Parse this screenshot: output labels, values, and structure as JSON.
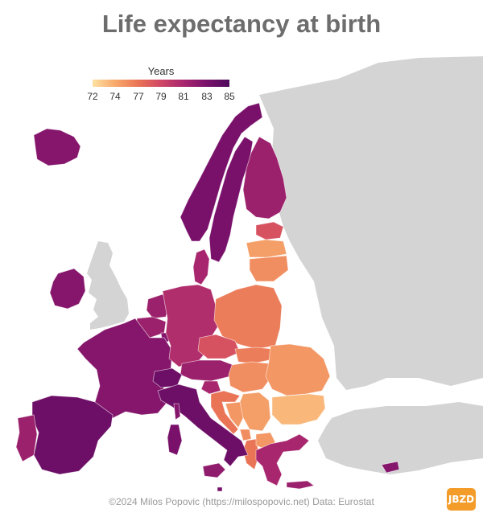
{
  "title": "Life expectancy at birth",
  "legend": {
    "title": "Years",
    "ticks": [
      "72",
      "74",
      "77",
      "79",
      "81",
      "83",
      "85"
    ],
    "colors": [
      "#fde2a2",
      "#f7a86b",
      "#ea7456",
      "#cf4665",
      "#a7266e",
      "#79116b",
      "#4e0a5c"
    ]
  },
  "credit": "©2024 Milos Popovic (https://milospopovic.net) Data: Eurostat",
  "watermark": "JBZD",
  "no_data_color": "#d4d4d4",
  "regions": [
    {
      "name": "Iceland",
      "years": 82.5
    },
    {
      "name": "Norway",
      "years": 83.0
    },
    {
      "name": "Sweden",
      "years": 83.0
    },
    {
      "name": "Finland",
      "years": 81.5
    },
    {
      "name": "Estonia",
      "years": 78.5
    },
    {
      "name": "Latvia",
      "years": 74.5
    },
    {
      "name": "Lithuania",
      "years": 75.5
    },
    {
      "name": "Ireland",
      "years": 82.5
    },
    {
      "name": "Denmark",
      "years": 81.0
    },
    {
      "name": "Netherlands",
      "years": 81.5
    },
    {
      "name": "Belgium",
      "years": 81.5
    },
    {
      "name": "Luxembourg",
      "years": 82.5
    },
    {
      "name": "France",
      "years": 82.5
    },
    {
      "name": "Germany",
      "years": 80.5
    },
    {
      "name": "Poland",
      "years": 76.5
    },
    {
      "name": "Czechia",
      "years": 78.5
    },
    {
      "name": "Slovakia",
      "years": 76.5
    },
    {
      "name": "Austria",
      "years": 81.5
    },
    {
      "name": "Switzerland",
      "years": 83.5
    },
    {
      "name": "Hungary",
      "years": 75.5
    },
    {
      "name": "Slovenia",
      "years": 81.0
    },
    {
      "name": "Croatia",
      "years": 77.0
    },
    {
      "name": "Serbia",
      "years": 74.5
    },
    {
      "name": "Bosnia",
      "years": 75.0
    },
    {
      "name": "Montenegro",
      "years": 75.5
    },
    {
      "name": "Albania",
      "years": 77.0
    },
    {
      "name": "North Macedonia",
      "years": 75.0
    },
    {
      "name": "Romania",
      "years": 75.0
    },
    {
      "name": "Bulgaria",
      "years": 73.5
    },
    {
      "name": "Greece",
      "years": 81.0
    },
    {
      "name": "Italy",
      "years": 83.5
    },
    {
      "name": "Sardinia",
      "years": 83.0
    },
    {
      "name": "Corsica",
      "years": 82.5
    },
    {
      "name": "Sicily",
      "years": 82.0
    },
    {
      "name": "Spain",
      "years": 83.5
    },
    {
      "name": "Portugal",
      "years": 81.5
    },
    {
      "name": "Crete",
      "years": 81.5
    },
    {
      "name": "Cyprus",
      "years": 82.5
    },
    {
      "name": "Malta",
      "years": 83.0
    }
  ]
}
